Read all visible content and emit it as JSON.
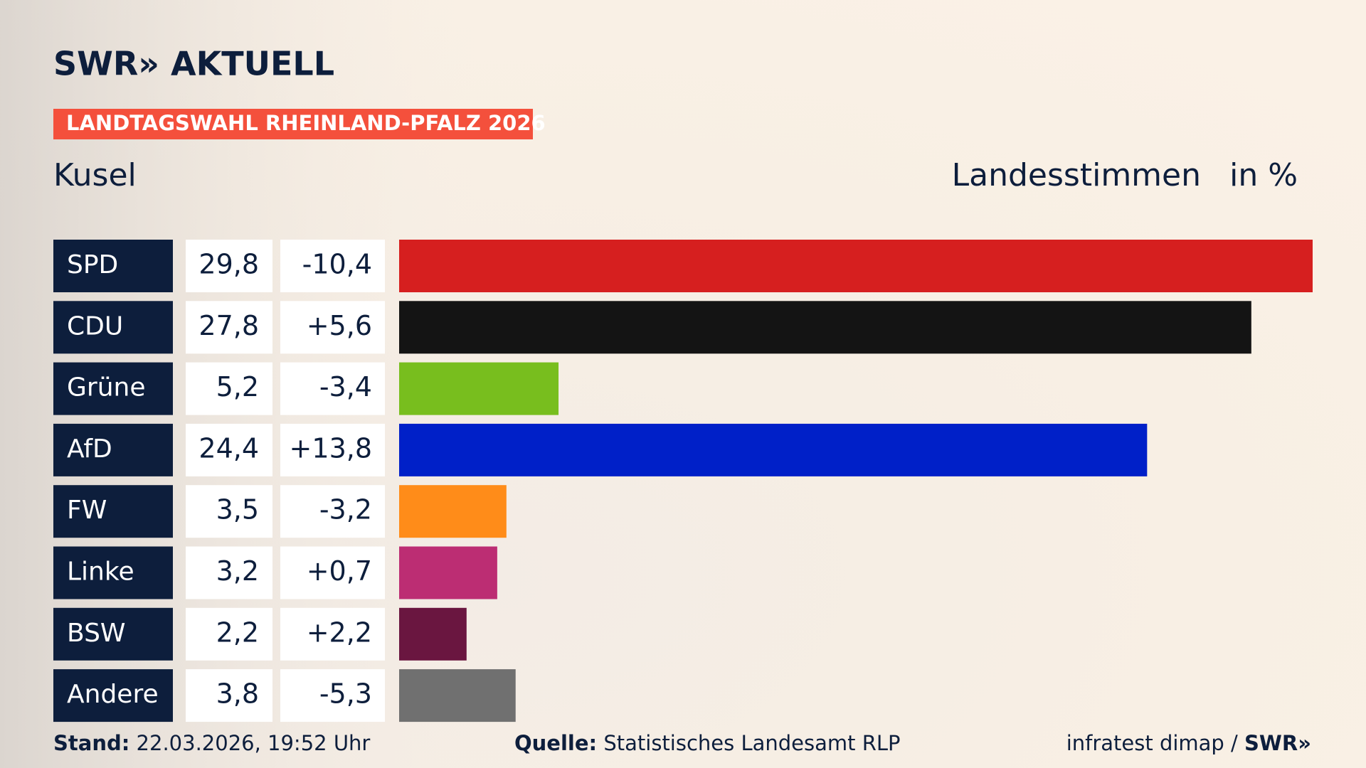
{
  "brand": "SWR» AKTUELL",
  "chart_data": {
    "type": "bar",
    "orientation": "horizontal",
    "title": "LANDTAGSWAHL RHEINLAND-PFALZ 2026",
    "subtitle": "Kusel",
    "value_axis_label": "Landesstimmen",
    "unit_label": "in %",
    "categories": [
      "SPD",
      "CDU",
      "Grüne",
      "AfD",
      "FW",
      "Linke",
      "BSW",
      "Andere"
    ],
    "values": [
      29.8,
      27.8,
      5.2,
      24.4,
      3.5,
      3.2,
      2.2,
      3.8
    ],
    "value_labels": [
      "29,8",
      "27,8",
      "5,2",
      "24,4",
      "3,5",
      "3,2",
      "2,2",
      "3,8"
    ],
    "changes": [
      -10.4,
      5.6,
      -3.4,
      13.8,
      -3.2,
      0.7,
      2.2,
      -5.3
    ],
    "change_labels": [
      "-10,4",
      "+5,6",
      "-3,4",
      "+13,8",
      "-3,2",
      "+0,7",
      "+2,2",
      "-5,3"
    ],
    "colors": [
      "#d61f1f",
      "#141414",
      "#78be1e",
      "#0020c8",
      "#ff8c19",
      "#bc2d73",
      "#6a1640",
      "#707070"
    ]
  },
  "footer": {
    "stand_label": "Stand:",
    "stand": "22.03.2026, 19:52 Uhr",
    "source_label": "Quelle:",
    "source": "Statistisches Landesamt RLP",
    "credit": "infratest dimap / ",
    "credit_brand": "SWR»"
  }
}
